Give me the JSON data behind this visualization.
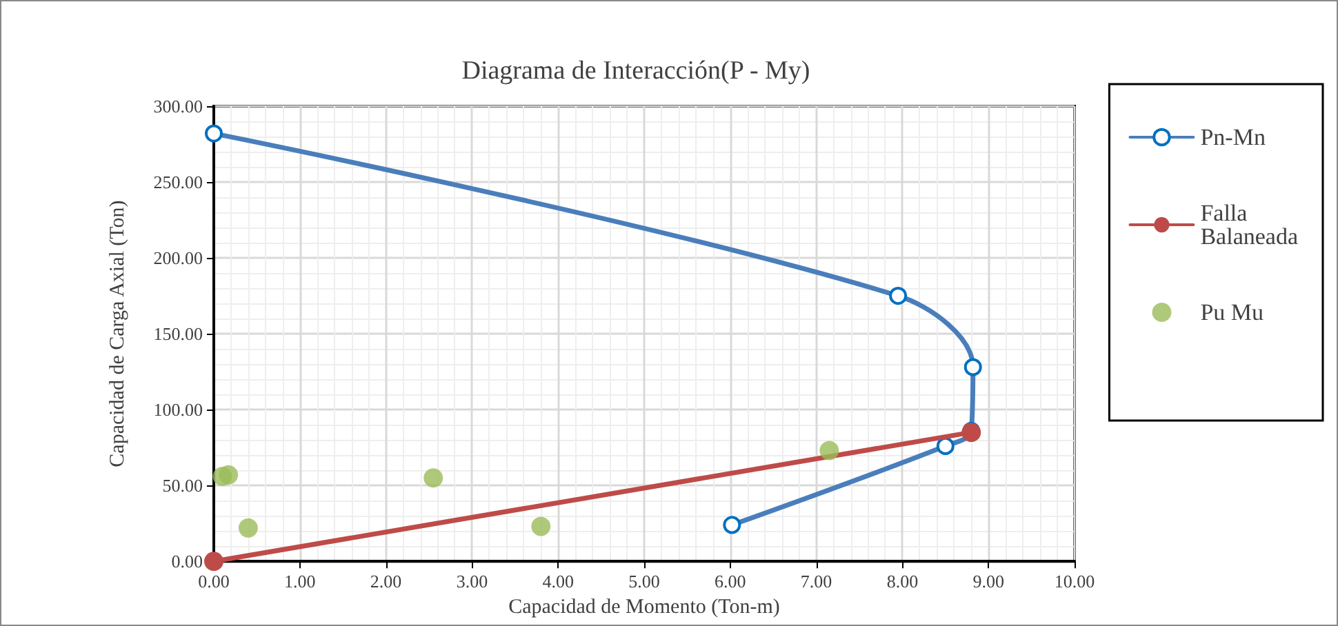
{
  "chart_data": {
    "type": "line",
    "title": "Diagrama de Interacción(P - My)",
    "xlabel": "Capacidad de Momento (Ton-m)",
    "ylabel": "Capacidad de Carga Axial (Ton)",
    "xlim": [
      0,
      10
    ],
    "ylim": [
      0,
      300
    ],
    "xticks": [
      {
        "value": 0,
        "label": "0.00"
      },
      {
        "value": 1,
        "label": "1.00"
      },
      {
        "value": 2,
        "label": "2.00"
      },
      {
        "value": 3,
        "label": "3.00"
      },
      {
        "value": 4,
        "label": "4.00"
      },
      {
        "value": 5,
        "label": "5.00"
      },
      {
        "value": 6,
        "label": "6.00"
      },
      {
        "value": 7,
        "label": "7.00"
      },
      {
        "value": 8,
        "label": "8.00"
      },
      {
        "value": 9,
        "label": "9.00"
      },
      {
        "value": 10,
        "label": "10.00"
      }
    ],
    "yticks": [
      {
        "value": 0,
        "label": "0.00"
      },
      {
        "value": 50,
        "label": "50.00"
      },
      {
        "value": 100,
        "label": "100.00"
      },
      {
        "value": 150,
        "label": "150.00"
      },
      {
        "value": 200,
        "label": "200.00"
      },
      {
        "value": 250,
        "label": "250.00"
      },
      {
        "value": 300,
        "label": "300.00"
      }
    ],
    "grid": true,
    "legend": "right",
    "series": [
      {
        "name": "Pn-Mn",
        "color": "#4a7ebb",
        "marker": "circle",
        "x": [
          0,
          7.95,
          8.82,
          8.8,
          8.5,
          6.02
        ],
        "values": [
          282,
          175,
          128,
          86,
          76,
          24
        ]
      },
      {
        "name": "Falla Balaneada",
        "color": "#be4b48",
        "marker": "circle",
        "x": [
          0,
          8.8
        ],
        "values": [
          0,
          85
        ]
      },
      {
        "name": "Pu Mu",
        "type": "scatter",
        "color": "#9bbb59",
        "marker": "circle",
        "x": [
          0.1,
          0.17,
          0.4,
          2.55,
          3.8,
          7.15
        ],
        "values": [
          56,
          57,
          22,
          55,
          23,
          73
        ]
      }
    ]
  }
}
